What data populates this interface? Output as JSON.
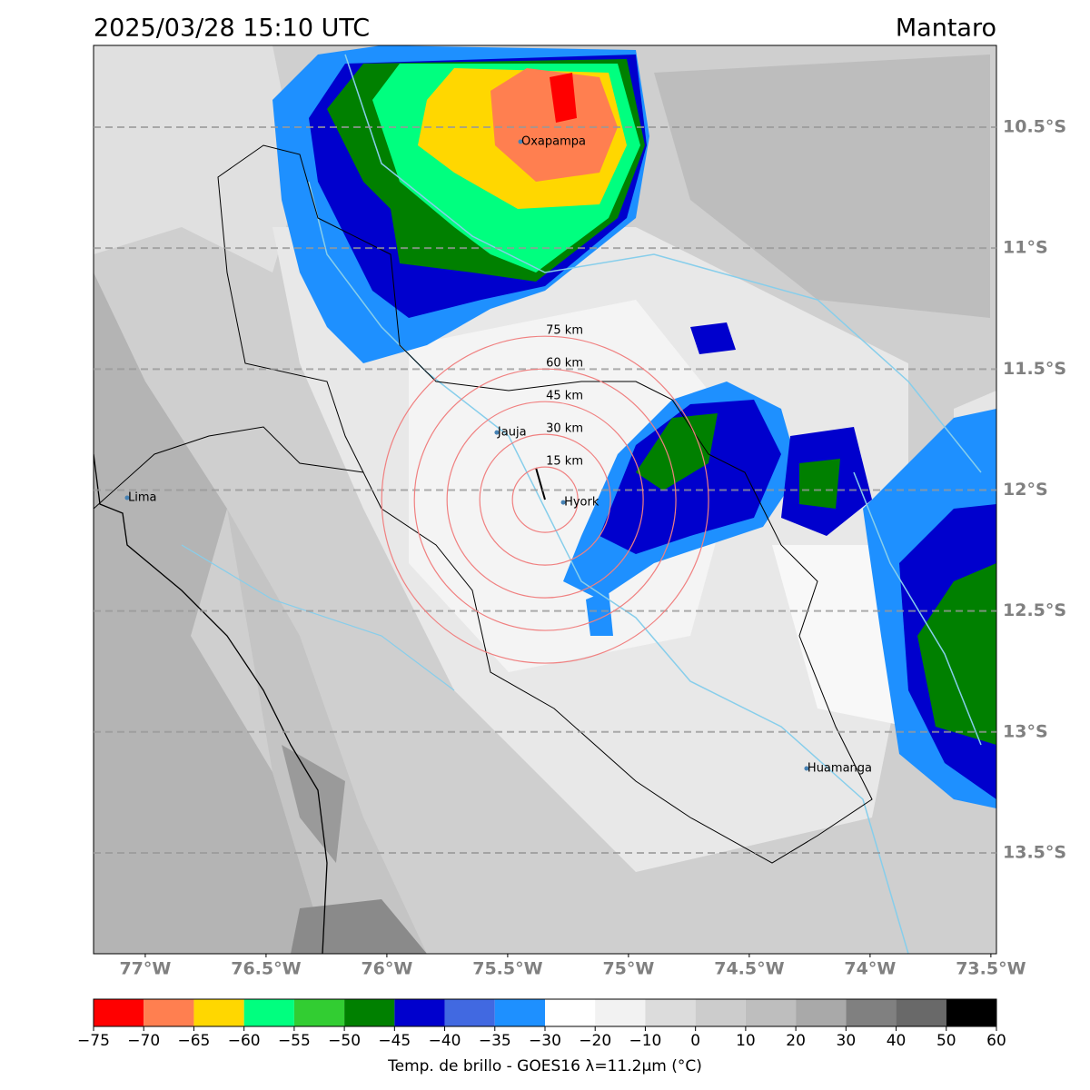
{
  "title": "2025/03/28 15:10 UTC",
  "region": "Mantaro",
  "map": {
    "lon_range": [
      -77.214,
      -73.477
    ],
    "lat_range": [
      -10.162,
      -13.917
    ],
    "lon_ticks": [
      {
        "value": -77,
        "label": "77°W"
      },
      {
        "value": -76.5,
        "label": "76.5°W"
      },
      {
        "value": -76,
        "label": "76°W"
      },
      {
        "value": -75.5,
        "label": "75.5°W"
      },
      {
        "value": -75,
        "label": "75°W"
      },
      {
        "value": -74.5,
        "label": "74.5°W"
      },
      {
        "value": -74,
        "label": "74°W"
      },
      {
        "value": -73.5,
        "label": "73.5°W"
      }
    ],
    "lat_ticks": [
      {
        "value": -10.5,
        "label": "10.5°S"
      },
      {
        "value": -11,
        "label": "11°S"
      },
      {
        "value": -11.5,
        "label": "11.5°S"
      },
      {
        "value": -12,
        "label": "12°S"
      },
      {
        "value": -12.5,
        "label": "12.5°S"
      },
      {
        "value": -13,
        "label": "13°S"
      },
      {
        "value": -13.5,
        "label": "13.5°S"
      }
    ],
    "ring_center": [
      -75.345,
      -12.04
    ],
    "rings": [
      {
        "value": 15,
        "label": "15 km"
      },
      {
        "value": 30,
        "label": "30 km"
      },
      {
        "value": 45,
        "label": "45 km"
      },
      {
        "value": 60,
        "label": "60 km"
      },
      {
        "value": 75,
        "label": "75 km"
      }
    ],
    "cities": [
      {
        "name": "Oxapampa",
        "lon": -75.447,
        "lat": -10.56
      },
      {
        "name": "Jauja",
        "lon": -75.545,
        "lat": -11.762
      },
      {
        "name": "Hyork",
        "lon": -75.27,
        "lat": -12.051
      },
      {
        "name": "Lima",
        "lon": -77.075,
        "lat": -12.032
      },
      {
        "name": "Huamanga",
        "lon": -74.263,
        "lat": -13.151
      }
    ]
  },
  "colorbar": {
    "label": "Temp. de brillo - GOES16 λ=11.2μm (°C)",
    "ticks": [
      {
        "value": -75,
        "label": "−75"
      },
      {
        "value": -70,
        "label": "−70"
      },
      {
        "value": -65,
        "label": "−65"
      },
      {
        "value": -60,
        "label": "−60"
      },
      {
        "value": -55,
        "label": "−55"
      },
      {
        "value": -50,
        "label": "−50"
      },
      {
        "value": -45,
        "label": "−45"
      },
      {
        "value": -40,
        "label": "−40"
      },
      {
        "value": -35,
        "label": "−35"
      },
      {
        "value": -30,
        "label": "−30"
      },
      {
        "value": -20,
        "label": "−20"
      },
      {
        "value": -10,
        "label": "−10"
      },
      0,
      10,
      20,
      30,
      40,
      50,
      60
    ],
    "colors": [
      "#ff0000",
      "#ff7f50",
      "#ffd700",
      "#00ff7f",
      "#32cd32",
      "#008000",
      "#0000cd",
      "#4169e1",
      "#1e90ff",
      "#ffffff",
      "#f2f2f2",
      "#dcdcdc",
      "#cccccc",
      "#bebebe",
      "#a9a9a9",
      "#808080",
      "#696969",
      "#000000"
    ]
  }
}
